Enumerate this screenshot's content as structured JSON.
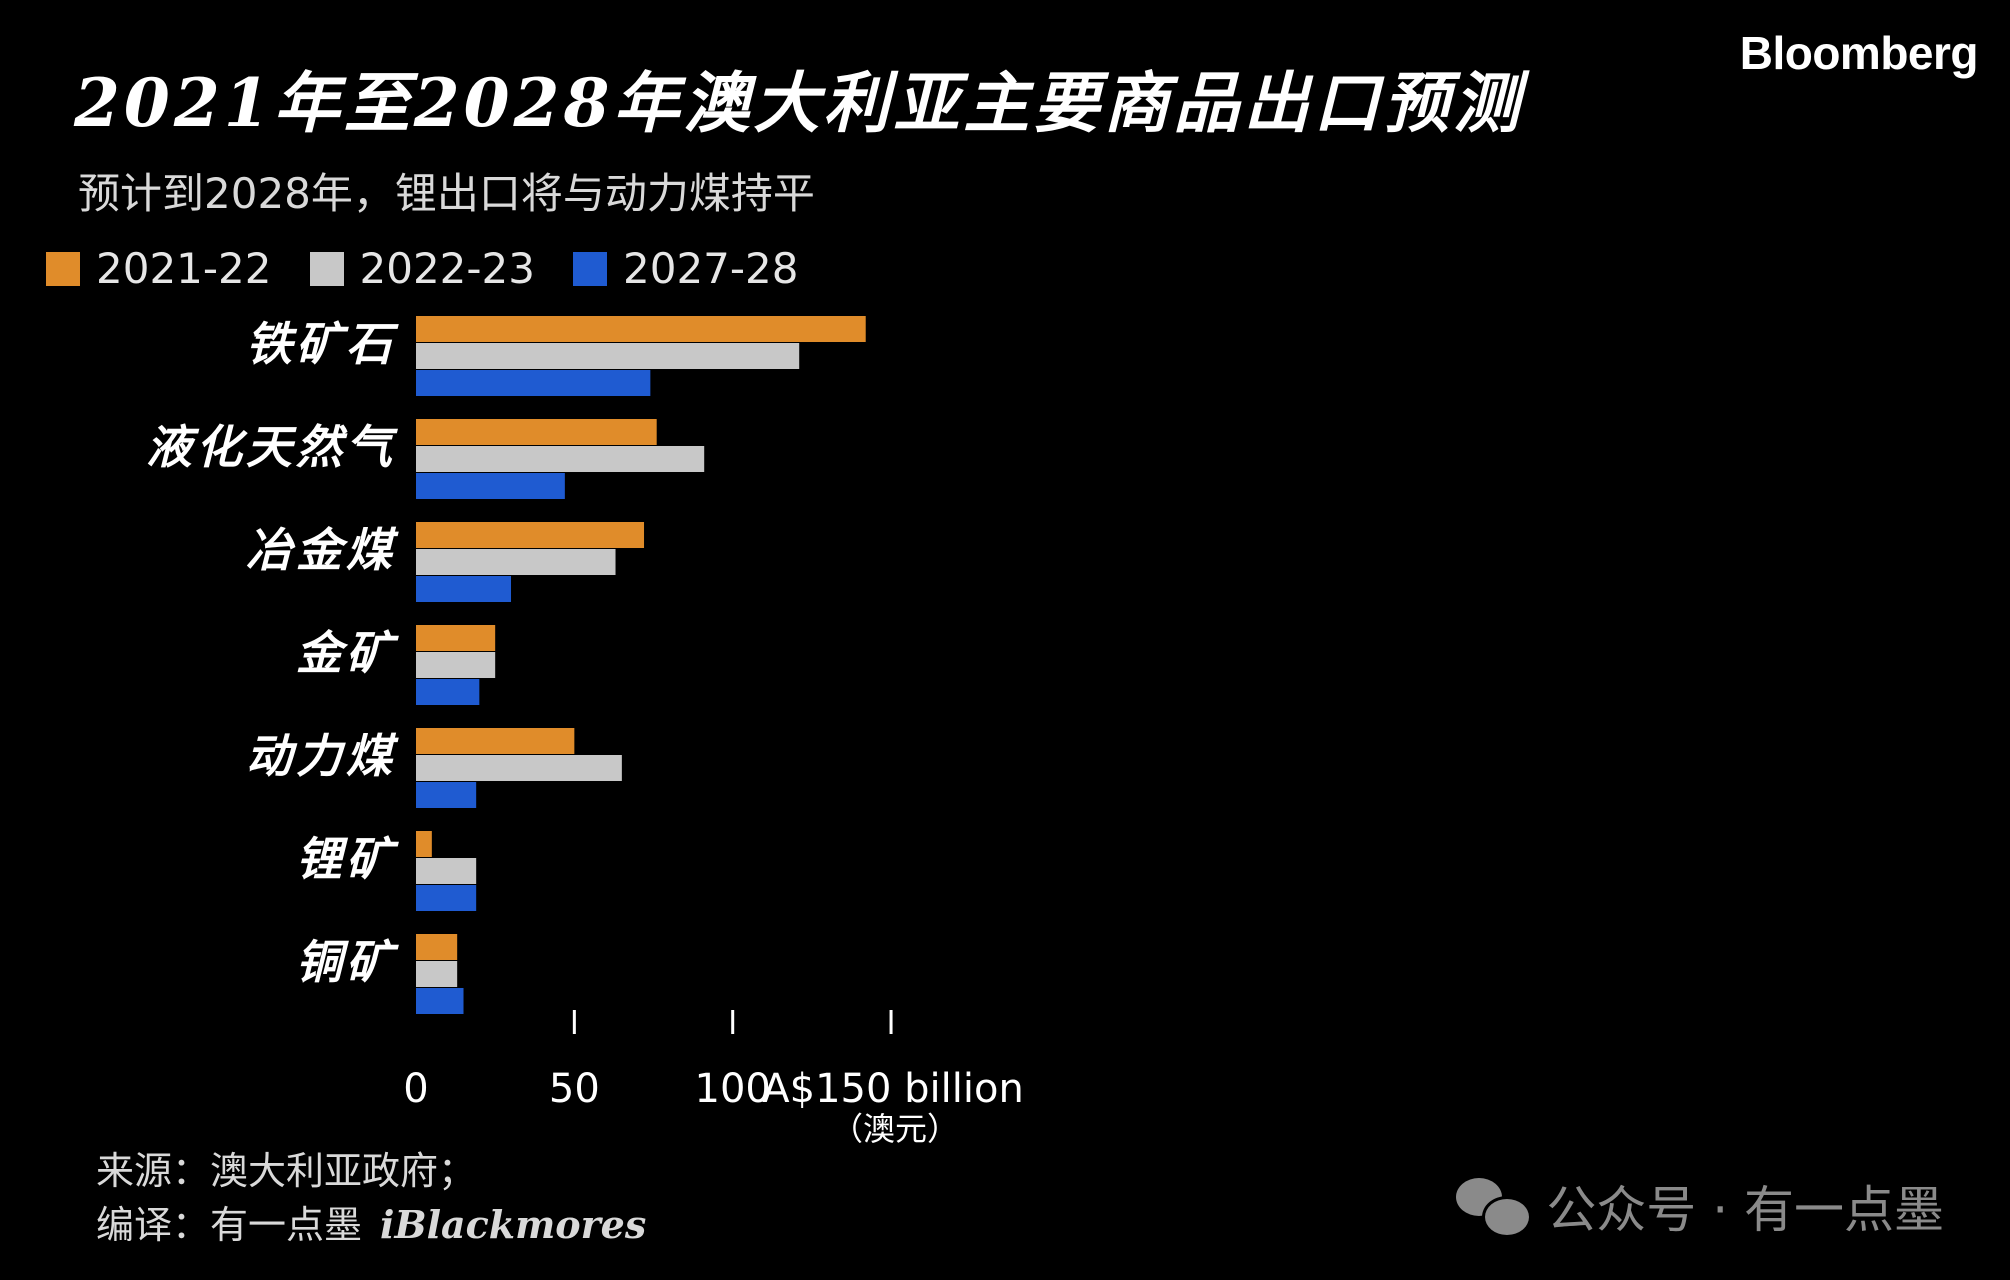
{
  "header": {
    "brand": "Bloomberg",
    "title": "2021年至2028年澳大利亚主要商品出口预测",
    "subtitle": "预计到2028年，锂出口将与动力煤持平"
  },
  "footer": {
    "source": "来源：澳大利亚政府；",
    "translator": "编译：有一点墨",
    "translator_brand": "iBlackmores",
    "watermark": "公众号 · 有一点墨"
  },
  "chart_data": {
    "type": "bar",
    "orientation": "horizontal",
    "categories": [
      "铁矿石",
      "液化天然气",
      "冶金煤",
      "金矿",
      "动力煤",
      "锂矿",
      "铜矿"
    ],
    "series": [
      {
        "name": "2021-22",
        "color": "#e08c2a",
        "values": [
          142,
          76,
          72,
          25,
          50,
          5,
          13
        ]
      },
      {
        "name": "2022-23",
        "color": "#c8c8c8",
        "values": [
          121,
          91,
          63,
          25,
          65,
          19,
          13
        ]
      },
      {
        "name": "2027-28",
        "color": "#1f5bd1",
        "values": [
          74,
          47,
          30,
          20,
          19,
          19,
          15
        ]
      }
    ],
    "xlim": [
      0,
      150
    ],
    "xticks": [
      "0",
      "50",
      "100",
      "A$150 billion"
    ],
    "x_unit_note": "（澳元）",
    "legend_position": "top-left",
    "grid": false
  }
}
